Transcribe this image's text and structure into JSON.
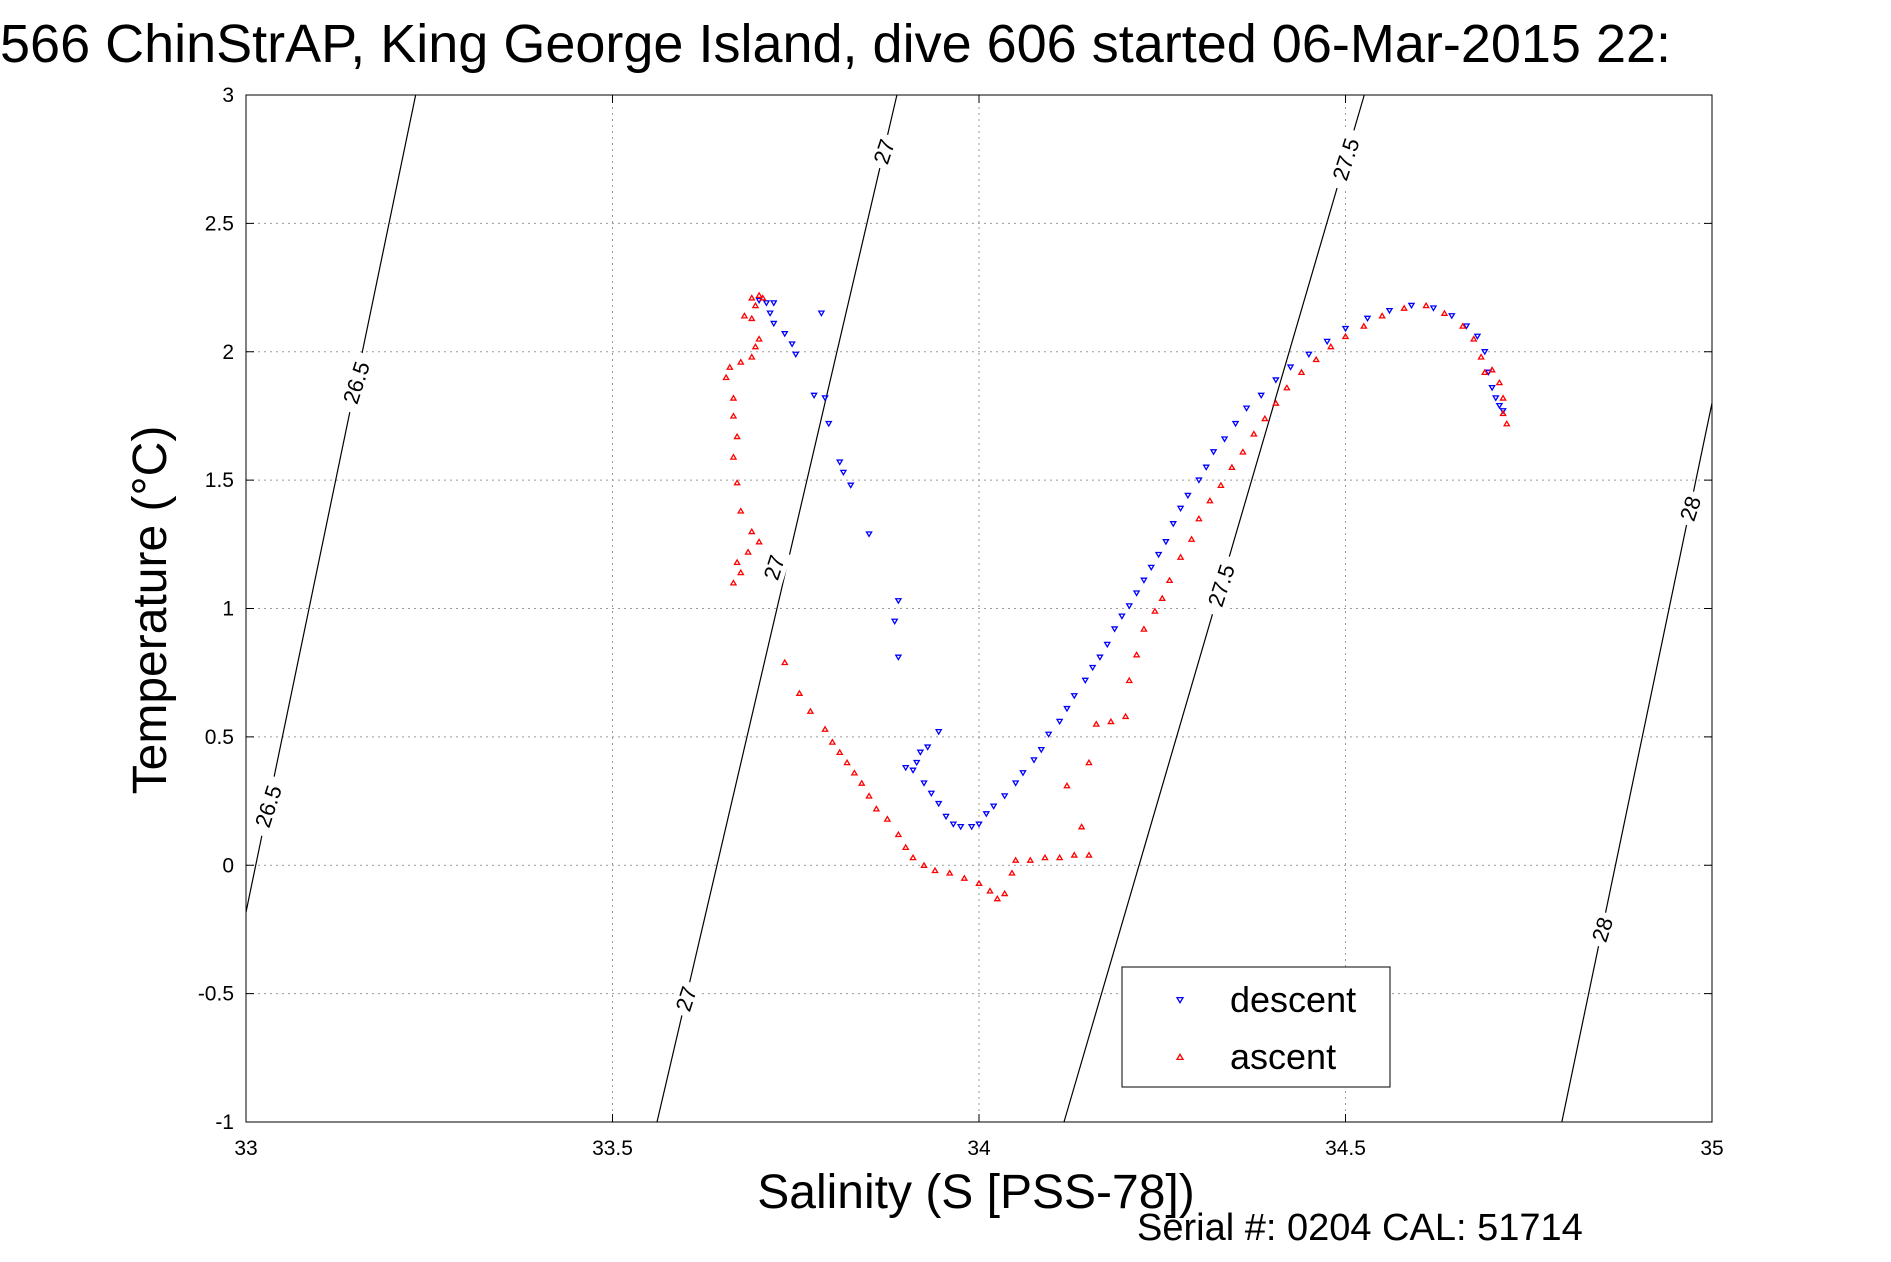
{
  "chart_data": {
    "type": "scatter",
    "title": "566 ChinStrAP, King George Island, dive 606 started 06-Mar-2015 22:",
    "xlabel": "Salinity (S [PSS-78])",
    "ylabel": "Temperature (°C)",
    "xlim": [
      33,
      35
    ],
    "ylim": [
      -1,
      3
    ],
    "xticks": [
      "33",
      "33.5",
      "34",
      "34.5",
      "35"
    ],
    "yticks": [
      "-1",
      "-0.5",
      "0",
      "0.5",
      "1",
      "1.5",
      "2",
      "2.5",
      "3"
    ],
    "grid": true,
    "legend_position": "bottom-center-right",
    "series": [
      {
        "name": "descent",
        "color": "#0000ff",
        "marker": "triangle-down",
        "points": [
          [
            33.7,
            2.2
          ],
          [
            33.71,
            2.19
          ],
          [
            33.72,
            2.19
          ],
          [
            33.715,
            2.15
          ],
          [
            33.72,
            2.11
          ],
          [
            33.735,
            2.07
          ],
          [
            33.745,
            2.03
          ],
          [
            33.75,
            1.99
          ],
          [
            33.785,
            2.15
          ],
          [
            33.775,
            1.83
          ],
          [
            33.79,
            1.82
          ],
          [
            33.795,
            1.72
          ],
          [
            33.81,
            1.57
          ],
          [
            33.815,
            1.53
          ],
          [
            33.825,
            1.48
          ],
          [
            33.85,
            1.29
          ],
          [
            33.89,
            1.03
          ],
          [
            33.885,
            0.95
          ],
          [
            33.89,
            0.81
          ],
          [
            33.9,
            0.38
          ],
          [
            33.91,
            0.37
          ],
          [
            33.915,
            0.4
          ],
          [
            33.92,
            0.44
          ],
          [
            33.93,
            0.46
          ],
          [
            33.945,
            0.52
          ],
          [
            33.925,
            0.32
          ],
          [
            33.935,
            0.28
          ],
          [
            33.945,
            0.24
          ],
          [
            33.955,
            0.19
          ],
          [
            33.965,
            0.16
          ],
          [
            33.975,
            0.15
          ],
          [
            33.99,
            0.15
          ],
          [
            34.0,
            0.16
          ],
          [
            34.01,
            0.2
          ],
          [
            34.02,
            0.23
          ],
          [
            34.035,
            0.27
          ],
          [
            34.05,
            0.32
          ],
          [
            34.06,
            0.36
          ],
          [
            34.075,
            0.41
          ],
          [
            34.085,
            0.45
          ],
          [
            34.095,
            0.51
          ],
          [
            34.11,
            0.56
          ],
          [
            34.12,
            0.61
          ],
          [
            34.13,
            0.66
          ],
          [
            34.145,
            0.72
          ],
          [
            34.155,
            0.77
          ],
          [
            34.165,
            0.81
          ],
          [
            34.175,
            0.86
          ],
          [
            34.185,
            0.92
          ],
          [
            34.195,
            0.97
          ],
          [
            34.205,
            1.01
          ],
          [
            34.215,
            1.06
          ],
          [
            34.225,
            1.11
          ],
          [
            34.235,
            1.16
          ],
          [
            34.245,
            1.21
          ],
          [
            34.255,
            1.26
          ],
          [
            34.265,
            1.33
          ],
          [
            34.275,
            1.39
          ],
          [
            34.285,
            1.44
          ],
          [
            34.3,
            1.5
          ],
          [
            34.31,
            1.55
          ],
          [
            34.32,
            1.61
          ],
          [
            34.335,
            1.66
          ],
          [
            34.35,
            1.72
          ],
          [
            34.365,
            1.78
          ],
          [
            34.385,
            1.83
          ],
          [
            34.405,
            1.89
          ],
          [
            34.425,
            1.94
          ],
          [
            34.45,
            1.99
          ],
          [
            34.475,
            2.04
          ],
          [
            34.5,
            2.09
          ],
          [
            34.53,
            2.13
          ],
          [
            34.56,
            2.16
          ],
          [
            34.59,
            2.18
          ],
          [
            34.62,
            2.17
          ],
          [
            34.645,
            2.14
          ],
          [
            34.665,
            2.1
          ],
          [
            34.68,
            2.06
          ],
          [
            34.69,
            2.0
          ],
          [
            34.695,
            1.92
          ],
          [
            34.7,
            1.86
          ],
          [
            34.705,
            1.82
          ],
          [
            34.71,
            1.79
          ],
          [
            34.715,
            1.77
          ]
        ]
      },
      {
        "name": "ascent",
        "color": "#ff0000",
        "marker": "triangle-up",
        "points": [
          [
            33.69,
            2.21
          ],
          [
            33.7,
            2.22
          ],
          [
            33.705,
            2.21
          ],
          [
            33.695,
            2.18
          ],
          [
            33.69,
            2.13
          ],
          [
            33.68,
            2.14
          ],
          [
            33.7,
            2.05
          ],
          [
            33.695,
            2.02
          ],
          [
            33.69,
            1.98
          ],
          [
            33.675,
            1.96
          ],
          [
            33.66,
            1.94
          ],
          [
            33.655,
            1.9
          ],
          [
            33.665,
            1.82
          ],
          [
            33.665,
            1.75
          ],
          [
            33.67,
            1.67
          ],
          [
            33.665,
            1.59
          ],
          [
            33.67,
            1.49
          ],
          [
            33.675,
            1.38
          ],
          [
            33.69,
            1.3
          ],
          [
            33.7,
            1.26
          ],
          [
            33.685,
            1.22
          ],
          [
            33.67,
            1.18
          ],
          [
            33.665,
            1.1
          ],
          [
            33.675,
            1.14
          ],
          [
            33.735,
            0.79
          ],
          [
            33.755,
            0.67
          ],
          [
            33.77,
            0.6
          ],
          [
            33.79,
            0.53
          ],
          [
            33.8,
            0.48
          ],
          [
            33.81,
            0.44
          ],
          [
            33.82,
            0.4
          ],
          [
            33.83,
            0.36
          ],
          [
            33.84,
            0.32
          ],
          [
            33.85,
            0.27
          ],
          [
            33.86,
            0.22
          ],
          [
            33.875,
            0.18
          ],
          [
            33.89,
            0.12
          ],
          [
            33.9,
            0.07
          ],
          [
            33.91,
            0.03
          ],
          [
            33.925,
            0.0
          ],
          [
            33.94,
            -0.02
          ],
          [
            33.96,
            -0.03
          ],
          [
            33.98,
            -0.05
          ],
          [
            34.0,
            -0.07
          ],
          [
            34.015,
            -0.1
          ],
          [
            34.025,
            -0.13
          ],
          [
            34.035,
            -0.11
          ],
          [
            34.045,
            -0.03
          ],
          [
            34.05,
            0.02
          ],
          [
            34.07,
            0.02
          ],
          [
            34.09,
            0.03
          ],
          [
            34.11,
            0.03
          ],
          [
            34.13,
            0.04
          ],
          [
            34.15,
            0.04
          ],
          [
            34.14,
            0.15
          ],
          [
            34.12,
            0.31
          ],
          [
            34.15,
            0.4
          ],
          [
            34.16,
            0.55
          ],
          [
            34.18,
            0.56
          ],
          [
            34.2,
            0.58
          ],
          [
            34.205,
            0.72
          ],
          [
            34.215,
            0.82
          ],
          [
            34.225,
            0.92
          ],
          [
            34.24,
            0.99
          ],
          [
            34.25,
            1.04
          ],
          [
            34.26,
            1.11
          ],
          [
            34.275,
            1.2
          ],
          [
            34.29,
            1.27
          ],
          [
            34.3,
            1.35
          ],
          [
            34.315,
            1.42
          ],
          [
            34.33,
            1.48
          ],
          [
            34.345,
            1.55
          ],
          [
            34.36,
            1.61
          ],
          [
            34.375,
            1.68
          ],
          [
            34.39,
            1.74
          ],
          [
            34.405,
            1.8
          ],
          [
            34.42,
            1.86
          ],
          [
            34.44,
            1.92
          ],
          [
            34.46,
            1.97
          ],
          [
            34.48,
            2.02
          ],
          [
            34.5,
            2.06
          ],
          [
            34.525,
            2.1
          ],
          [
            34.55,
            2.14
          ],
          [
            34.58,
            2.17
          ],
          [
            34.61,
            2.18
          ],
          [
            34.635,
            2.15
          ],
          [
            34.66,
            2.1
          ],
          [
            34.675,
            2.05
          ],
          [
            34.685,
            1.98
          ],
          [
            34.69,
            1.92
          ],
          [
            34.7,
            1.93
          ],
          [
            34.71,
            1.88
          ],
          [
            34.715,
            1.82
          ],
          [
            34.715,
            1.76
          ],
          [
            34.72,
            1.72
          ]
        ]
      }
    ],
    "contours": [
      {
        "label": "26.5",
        "labels_at": [
          [
            33.15,
            1.88
          ],
          [
            33.03,
            0.23
          ]
        ]
      },
      {
        "label": "27",
        "labels_at": [
          [
            33.87,
            2.78
          ],
          [
            33.72,
            1.16
          ],
          [
            33.6,
            -0.52
          ]
        ]
      },
      {
        "label": "27.5",
        "labels_at": [
          [
            34.5,
            2.75
          ],
          [
            34.33,
            1.09
          ]
        ]
      },
      {
        "label": "28",
        "labels_at": [
          [
            34.97,
            1.39
          ],
          [
            34.85,
            -0.25
          ]
        ]
      }
    ],
    "footer": "Serial #: 0204  CAL: 51714"
  }
}
